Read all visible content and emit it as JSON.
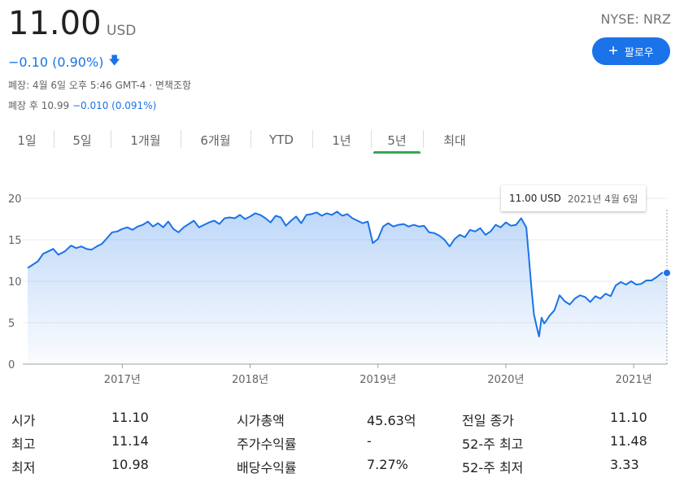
{
  "header": {
    "price": "11.00",
    "currency": "USD",
    "ticker": "NYSE: NRZ",
    "follow_label": "팔로우",
    "change": "−0.10 (0.90%)",
    "close_info": "폐장: 4월 6일 오후 5:46 GMT-4 · 면책조항",
    "after_hours_label": "폐장 후 10.99",
    "after_hours_change": "−0.010 (0.091%)",
    "change_color": "#1a73e8"
  },
  "tabs": [
    {
      "label": "1일"
    },
    {
      "label": "5일"
    },
    {
      "label": "1개월"
    },
    {
      "label": "6개월"
    },
    {
      "label": "YTD"
    },
    {
      "label": "1년"
    },
    {
      "label": "5년",
      "active": true
    },
    {
      "label": "최대"
    }
  ],
  "tooltip": {
    "price": "11.00 USD",
    "date": "2021년 4월 6일"
  },
  "chart_data": {
    "type": "area",
    "color": "#1a73e8",
    "ylim": [
      0,
      20
    ],
    "y_ticks": [
      "0",
      "5",
      "10",
      "15",
      "20"
    ],
    "x_ticks": [
      "2017년",
      "2018년",
      "2019년",
      "2020년",
      "2021년"
    ],
    "x_tick_years": [
      2017,
      2018,
      2019,
      2020,
      2021
    ],
    "x_range": [
      2016.26,
      2021.26
    ],
    "grid": true,
    "series": [
      {
        "x": [
          2016.26,
          2016.3,
          2016.34,
          2016.38,
          2016.42,
          2016.46,
          2016.5,
          2016.55,
          2016.6,
          2016.64,
          2016.68,
          2016.72,
          2016.76,
          2016.8,
          2016.84,
          2016.88,
          2016.92,
          2016.96,
          2017.0,
          2017.04,
          2017.08,
          2017.12,
          2017.16,
          2017.2,
          2017.24,
          2017.28,
          2017.32,
          2017.36,
          2017.4,
          2017.44,
          2017.48,
          2017.52,
          2017.56,
          2017.6,
          2017.64,
          2017.68,
          2017.72,
          2017.76,
          2017.8,
          2017.84,
          2017.88,
          2017.92,
          2017.96,
          2018.0,
          2018.04,
          2018.08,
          2018.12,
          2018.16,
          2018.2,
          2018.24,
          2018.28,
          2018.32,
          2018.36,
          2018.4,
          2018.44,
          2018.48,
          2018.52,
          2018.56,
          2018.6,
          2018.64,
          2018.68,
          2018.72,
          2018.76,
          2018.8,
          2018.84,
          2018.88,
          2018.92,
          2018.96,
          2019.0,
          2019.04,
          2019.08,
          2019.12,
          2019.16,
          2019.2,
          2019.24,
          2019.28,
          2019.32,
          2019.36,
          2019.4,
          2019.44,
          2019.48,
          2019.52,
          2019.56,
          2019.6,
          2019.64,
          2019.68,
          2019.72,
          2019.76,
          2019.8,
          2019.84,
          2019.88,
          2019.92,
          2019.96,
          2020.0,
          2020.04,
          2020.08,
          2020.12,
          2020.16,
          2020.18,
          2020.2,
          2020.22,
          2020.24,
          2020.26,
          2020.28,
          2020.3,
          2020.32,
          2020.34,
          2020.38,
          2020.42,
          2020.46,
          2020.5,
          2020.54,
          2020.58,
          2020.62,
          2020.66,
          2020.7,
          2020.74,
          2020.78,
          2020.82,
          2020.86,
          2020.9,
          2020.94,
          2020.98,
          2021.02,
          2021.06,
          2021.1,
          2021.14,
          2021.18,
          2021.22,
          2021.26
        ],
        "y": [
          11.6,
          12.0,
          12.4,
          13.3,
          13.6,
          13.9,
          13.2,
          13.6,
          14.3,
          14.0,
          14.2,
          13.9,
          13.8,
          14.2,
          14.5,
          15.2,
          15.9,
          16.0,
          16.3,
          16.5,
          16.2,
          16.6,
          16.8,
          17.2,
          16.6,
          17.0,
          16.5,
          17.2,
          16.3,
          15.9,
          16.5,
          16.9,
          17.3,
          16.5,
          16.8,
          17.1,
          17.3,
          16.9,
          17.6,
          17.7,
          17.6,
          18.0,
          17.5,
          17.8,
          18.2,
          18.0,
          17.6,
          17.1,
          17.9,
          17.7,
          16.7,
          17.3,
          17.8,
          17.0,
          18.0,
          18.1,
          18.3,
          17.9,
          18.2,
          18.0,
          18.4,
          17.9,
          18.1,
          17.6,
          17.3,
          17.0,
          17.2,
          14.6,
          15.1,
          16.6,
          17.0,
          16.6,
          16.8,
          16.9,
          16.6,
          16.8,
          16.6,
          16.7,
          15.9,
          15.8,
          15.5,
          15.0,
          14.2,
          15.1,
          15.6,
          15.3,
          16.2,
          16.0,
          16.4,
          15.6,
          16.0,
          16.8,
          16.5,
          17.1,
          16.7,
          16.8,
          17.6,
          16.5,
          13.0,
          9.2,
          6.0,
          4.6,
          3.33,
          5.6,
          4.9,
          5.3,
          5.8,
          6.5,
          8.3,
          7.6,
          7.2,
          7.9,
          8.3,
          8.1,
          7.5,
          8.2,
          7.9,
          8.5,
          8.2,
          9.5,
          9.9,
          9.6,
          10.0,
          9.6,
          9.7,
          10.1,
          10.1,
          10.5,
          11.0,
          11.0
        ]
      }
    ]
  },
  "stats": [
    {
      "label": "시가",
      "value": "11.10"
    },
    {
      "label": "최고",
      "value": "11.14"
    },
    {
      "label": "최저",
      "value": "10.98"
    },
    {
      "label": "시가총액",
      "value": "45.63억"
    },
    {
      "label": "주가수익률",
      "value": "-"
    },
    {
      "label": "배당수익률",
      "value": "7.27%"
    },
    {
      "label": "전일 종가",
      "value": "11.10"
    },
    {
      "label": "52-주 최고",
      "value": "11.48"
    },
    {
      "label": "52-주 최저",
      "value": "3.33"
    }
  ]
}
